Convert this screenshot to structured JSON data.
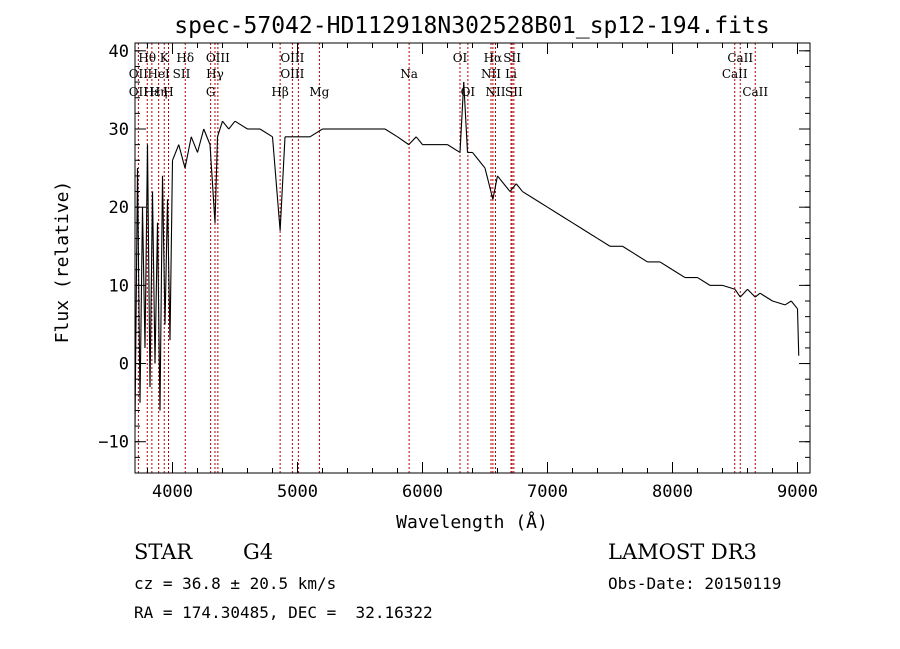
{
  "chart_data": {
    "type": "line",
    "title": "spec-57042-HD112918N302528B01_sp12-194.fits",
    "xlabel": "Wavelength (Å)",
    "ylabel": "Flux (relative)",
    "xlim": [
      3700,
      9100
    ],
    "ylim": [
      -14,
      41
    ],
    "xticks": [
      4000,
      5000,
      6000,
      7000,
      8000,
      9000
    ],
    "yticks": [
      -10,
      0,
      10,
      20,
      30,
      40
    ],
    "x_minor_step": 200,
    "y_minor_step": 2,
    "grid": false,
    "series": [
      {
        "name": "flux",
        "color": "#000000",
        "x": [
          3700,
          3720,
          3740,
          3760,
          3780,
          3800,
          3820,
          3840,
          3860,
          3880,
          3900,
          3920,
          3940,
          3960,
          3980,
          4000,
          4050,
          4100,
          4150,
          4200,
          4250,
          4300,
          4340,
          4360,
          4400,
          4450,
          4500,
          4600,
          4700,
          4800,
          4861,
          4900,
          5000,
          5100,
          5200,
          5300,
          5400,
          5500,
          5600,
          5700,
          5800,
          5890,
          5950,
          6000,
          6100,
          6200,
          6300,
          6330,
          6360,
          6400,
          6450,
          6500,
          6563,
          6600,
          6650,
          6700,
          6750,
          6800,
          6900,
          7000,
          7100,
          7200,
          7300,
          7400,
          7500,
          7600,
          7700,
          7800,
          7900,
          8000,
          8100,
          8200,
          8300,
          8400,
          8500,
          8542,
          8600,
          8662,
          8700,
          8800,
          8900,
          8950,
          9000,
          9010
        ],
        "y": [
          -8,
          25,
          -5,
          20,
          2,
          28,
          -3,
          22,
          0,
          18,
          -6,
          24,
          5,
          21,
          3,
          26,
          28,
          25,
          29,
          27,
          30,
          28,
          18,
          29,
          31,
          30,
          31,
          30,
          30,
          29,
          17,
          29,
          29,
          29,
          30,
          30,
          30,
          30,
          30,
          30,
          29,
          28,
          29,
          28,
          28,
          28,
          27,
          36,
          27,
          27,
          26,
          25,
          21,
          24,
          23,
          22,
          23,
          22,
          21,
          20,
          19,
          18,
          17,
          16,
          15,
          15,
          14,
          13,
          13,
          12,
          11,
          11,
          10,
          10,
          9.5,
          8.5,
          9.5,
          8.5,
          9,
          8,
          7.5,
          8,
          7,
          1
        ]
      }
    ],
    "annotations": [
      {
        "label": "OII",
        "x": 3727,
        "row": 2
      },
      {
        "label": "OII",
        "x": 3727,
        "row": 3
      },
      {
        "label": "Hθ",
        "x": 3798,
        "row": 1
      },
      {
        "label": "Hε",
        "x": 3835,
        "row": 3
      },
      {
        "label": "Hη",
        "x": 3889,
        "row": 3
      },
      {
        "label": "K",
        "x": 3934,
        "row": 1
      },
      {
        "label": "HeI",
        "x": 3889,
        "row": 2
      },
      {
        "label": "SII",
        "x": 4072,
        "row": 2
      },
      {
        "label": "H",
        "x": 3968,
        "row": 3
      },
      {
        "label": "Hδ",
        "x": 4102,
        "row": 1
      },
      {
        "label": "OIII",
        "x": 4363,
        "row": 1
      },
      {
        "label": "Hγ",
        "x": 4340,
        "row": 2
      },
      {
        "label": "G",
        "x": 4305,
        "row": 3
      },
      {
        "label": "Hβ",
        "x": 4861,
        "row": 3
      },
      {
        "label": "OIII",
        "x": 4959,
        "row": 1
      },
      {
        "label": "OIII",
        "x": 4959,
        "row": 2
      },
      {
        "label": "Mg",
        "x": 5175,
        "row": 3
      },
      {
        "label": "Na",
        "x": 5893,
        "row": 2
      },
      {
        "label": "OI",
        "x": 6300,
        "row": 1
      },
      {
        "label": "OI",
        "x": 6363,
        "row": 3
      },
      {
        "label": "Hα",
        "x": 6563,
        "row": 1
      },
      {
        "label": "NII",
        "x": 6548,
        "row": 2
      },
      {
        "label": "NII",
        "x": 6584,
        "row": 3
      },
      {
        "label": "SII",
        "x": 6717,
        "row": 1
      },
      {
        "label": "Li",
        "x": 6708,
        "row": 2
      },
      {
        "label": "SII",
        "x": 6731,
        "row": 3
      },
      {
        "label": "CaII",
        "x": 8542,
        "row": 1
      },
      {
        "label": "CaII",
        "x": 8498,
        "row": 2
      },
      {
        "label": "CaII",
        "x": 8662,
        "row": 3
      }
    ],
    "line_markers": [
      3727,
      3798,
      3835,
      3889,
      3934,
      3968,
      4102,
      4305,
      4340,
      4363,
      4861,
      4959,
      5007,
      5175,
      5893,
      6300,
      6363,
      6548,
      6563,
      6584,
      6708,
      6717,
      6731,
      8498,
      8542,
      8662
    ],
    "marker_color": "#b00000"
  },
  "info": {
    "class": "STAR",
    "subclass": "G4",
    "cz": "cz = 36.8 ± 20.5 km/s",
    "radec": "RA = 174.30485, DEC =  32.16322",
    "survey": "LAMOST DR3",
    "obsdate": "Obs-Date: 20150119"
  }
}
